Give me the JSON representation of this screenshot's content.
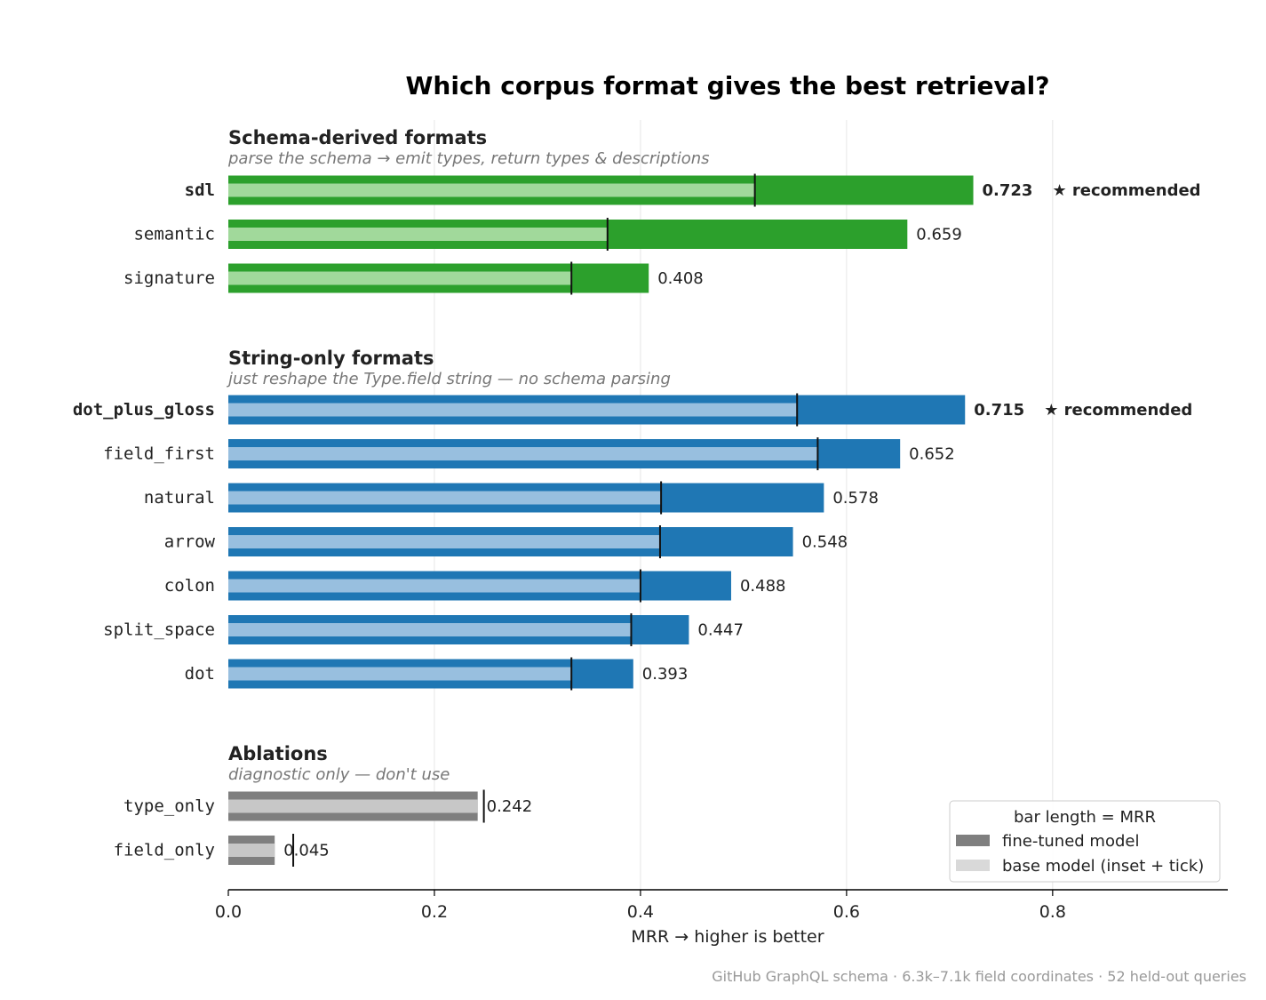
{
  "chart_data": {
    "type": "bar",
    "orientation": "horizontal",
    "title": "Which corpus format gives the best retrieval?",
    "xlabel": "MRR  →  higher is better",
    "xlim": [
      0,
      0.97
    ],
    "xticks": [
      0.0,
      0.2,
      0.4,
      0.6,
      0.8
    ],
    "xtick_labels": [
      "0.0",
      "0.2",
      "0.4",
      "0.6",
      "0.8"
    ],
    "grid": "vertical",
    "footer": "GitHub GraphQL schema · 6.3k–7.1k field coordinates · 52 held-out queries",
    "recommended_label": "★ recommended",
    "groups": [
      {
        "title": "Schema-derived formats",
        "subtitle": "parse the schema → emit types, return types & descriptions",
        "color": "#2ca02c",
        "base_color": "#a1d99b",
        "items": [
          {
            "name": "sdl",
            "finetuned": 0.723,
            "base": 0.511,
            "label": "0.723",
            "recommended": true
          },
          {
            "name": "semantic",
            "finetuned": 0.659,
            "base": 0.368,
            "label": "0.659",
            "recommended": false
          },
          {
            "name": "signature",
            "finetuned": 0.408,
            "base": 0.333,
            "label": "0.408",
            "recommended": false
          }
        ]
      },
      {
        "title": "String-only formats",
        "subtitle": "just reshape the Type.field string — no schema parsing",
        "color": "#1f77b4",
        "base_color": "#98bfdf",
        "items": [
          {
            "name": "dot_plus_gloss",
            "finetuned": 0.715,
            "base": 0.552,
            "label": "0.715",
            "recommended": true
          },
          {
            "name": "field_first",
            "finetuned": 0.652,
            "base": 0.572,
            "label": "0.652",
            "recommended": false
          },
          {
            "name": "natural",
            "finetuned": 0.578,
            "base": 0.42,
            "label": "0.578",
            "recommended": false
          },
          {
            "name": "arrow",
            "finetuned": 0.548,
            "base": 0.419,
            "label": "0.548",
            "recommended": false
          },
          {
            "name": "colon",
            "finetuned": 0.488,
            "base": 0.4,
            "label": "0.488",
            "recommended": false
          },
          {
            "name": "split_space",
            "finetuned": 0.447,
            "base": 0.391,
            "label": "0.447",
            "recommended": false
          },
          {
            "name": "dot",
            "finetuned": 0.393,
            "base": 0.333,
            "label": "0.393",
            "recommended": false
          }
        ]
      },
      {
        "title": "Ablations",
        "subtitle": "diagnostic only — don't use",
        "color": "#7f7f7f",
        "base_color": "#c7c7c7",
        "items": [
          {
            "name": "type_only",
            "finetuned": 0.242,
            "base": 0.248,
            "label": "0.242",
            "recommended": false
          },
          {
            "name": "field_only",
            "finetuned": 0.045,
            "base": 0.063,
            "label": "0.045",
            "recommended": false
          }
        ]
      }
    ],
    "legend": {
      "title": "bar length = MRR",
      "placement": "bottom-right",
      "entries": [
        {
          "label": "fine-tuned model",
          "color": "#7f7f7f"
        },
        {
          "label": "base model (inset + tick)",
          "color": "#d9d9d9"
        }
      ]
    }
  }
}
